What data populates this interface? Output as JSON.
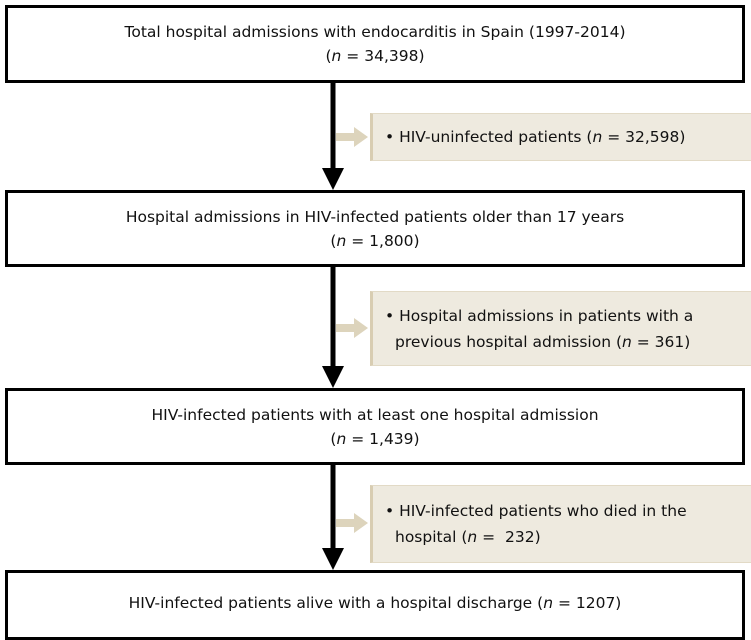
{
  "nodes": [
    {
      "lines": [
        [
          {
            "text": "Total hospital admissions with endocarditis in Spain (1997-2014)"
          }
        ],
        [
          {
            "text": "("
          },
          {
            "text": "n",
            "italic": true
          },
          {
            "text": " = 34,398)"
          }
        ]
      ]
    },
    {
      "lines": [
        [
          {
            "text": "Hospital admissions in HIV-infected patients older than 17 years"
          }
        ],
        [
          {
            "text": "("
          },
          {
            "text": "n",
            "italic": true
          },
          {
            "text": " = 1,800)"
          }
        ]
      ]
    },
    {
      "lines": [
        [
          {
            "text": "HIV-infected patients with at least one hospital admission"
          }
        ],
        [
          {
            "text": "("
          },
          {
            "text": "n",
            "italic": true
          },
          {
            "text": " = 1,439)"
          }
        ]
      ]
    },
    {
      "lines": [
        [
          {
            "text": "HIV-infected patients alive with a hospital discharge ("
          },
          {
            "text": "n",
            "italic": true
          },
          {
            "text": " = 1207)"
          }
        ]
      ]
    }
  ],
  "exclusions": [
    {
      "lines": [
        [
          {
            "text": "• HIV-uninfected patients ("
          },
          {
            "text": "n",
            "italic": true
          },
          {
            "text": " = 32,598)"
          }
        ]
      ]
    },
    {
      "lines": [
        [
          {
            "text": "• Hospital admissions in patients with a"
          }
        ],
        [
          {
            "text": "previous hospital admission ("
          },
          {
            "text": "n",
            "italic": true
          },
          {
            "text": " = 361)"
          }
        ]
      ]
    },
    {
      "lines": [
        [
          {
            "text": "• HIV-infected patients who died in the"
          }
        ],
        [
          {
            "text": "hospital ("
          },
          {
            "text": "n",
            "italic": true
          },
          {
            "text": " =  232)"
          }
        ]
      ]
    }
  ]
}
